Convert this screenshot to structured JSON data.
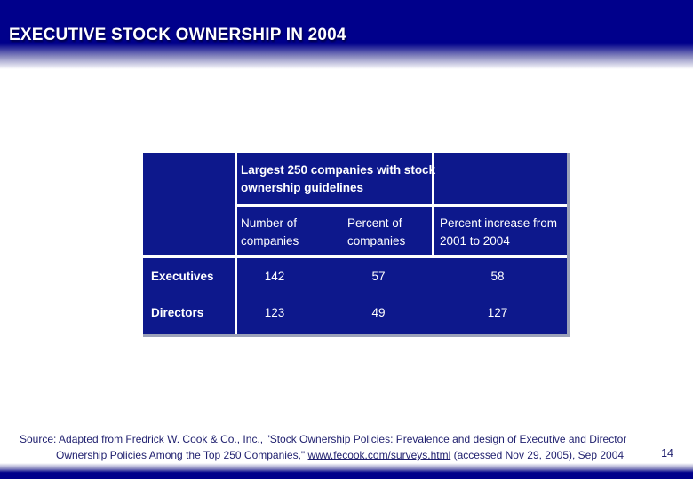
{
  "slide": {
    "title": "EXECUTIVE STOCK OWNERSHIP IN 2004",
    "page_number": "14"
  },
  "table": {
    "merged_header": "Largest 250 companies with stock ownership guidelines",
    "columns": [
      "Number of companies",
      "Percent of companies",
      "Percent increase from 2001 to 2004"
    ],
    "rows": [
      {
        "label": "Executives",
        "values": [
          "142",
          "57",
          "58"
        ]
      },
      {
        "label": "Directors",
        "values": [
          "123",
          "49",
          "127"
        ]
      }
    ]
  },
  "footer": {
    "line1": "Source: Adapted from Fredrick W. Cook & Co., Inc., \"Stock Ownership Policies: Prevalence and design of Executive and Director",
    "line2_prefix": "Ownership Policies Among the Top 250 Companies,\" ",
    "link": "www.fecook.com/surveys.html",
    "line2_suffix": " (accessed Nov 29, 2005), Sep 2004"
  },
  "colors": {
    "band_blue": "#00008b",
    "table_blue": "#0d188c",
    "gridline_white": "#ffffff",
    "table_shadow_gray": "#9ba1b8",
    "footer_text_navy": "#1f1f6e"
  }
}
